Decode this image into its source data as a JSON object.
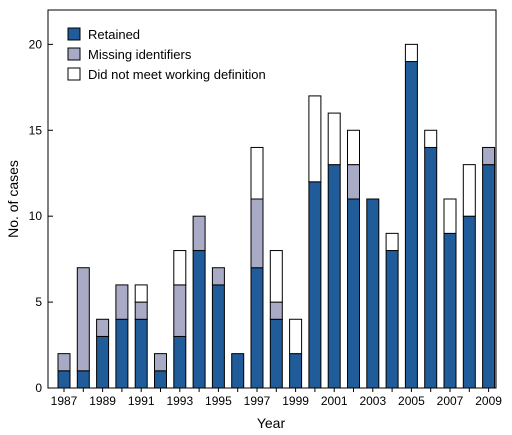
{
  "chart_data": {
    "type": "bar",
    "stacked": true,
    "xlabel": "Year",
    "ylabel": "No. of cases",
    "ylim": [
      0,
      22
    ],
    "yticks": [
      0,
      5,
      10,
      15,
      20
    ],
    "categories": [
      "1987",
      "1988",
      "1989",
      "1990",
      "1991",
      "1992",
      "1993",
      "1994",
      "1995",
      "1996",
      "1997",
      "1998",
      "1999",
      "2000",
      "2001",
      "2002",
      "2003",
      "2004",
      "2005",
      "2006",
      "2007",
      "2008",
      "2009"
    ],
    "xtick_labels": [
      "1987",
      "",
      "1989",
      "",
      "1991",
      "",
      "1993",
      "",
      "1995",
      "",
      "1997",
      "",
      "1999",
      "",
      "2001",
      "",
      "2003",
      "",
      "2005",
      "",
      "2007",
      "",
      "2009"
    ],
    "series": [
      {
        "name": "Retained",
        "color": "#1f5c99",
        "values": [
          1,
          1,
          3,
          4,
          4,
          1,
          3,
          8,
          6,
          2,
          7,
          4,
          2,
          12,
          13,
          11,
          11,
          8,
          19,
          14,
          9,
          10,
          13
        ]
      },
      {
        "name": "Missing identifiers",
        "color": "#a9abc6",
        "values": [
          1,
          6,
          1,
          2,
          1,
          1,
          3,
          2,
          1,
          0,
          4,
          1,
          0,
          0,
          0,
          2,
          0,
          0,
          0,
          0,
          0,
          0,
          1
        ]
      },
      {
        "name": "Did not meet working definition",
        "color": "#ffffff",
        "values": [
          0,
          0,
          0,
          0,
          1,
          0,
          2,
          0,
          0,
          0,
          3,
          3,
          2,
          5,
          3,
          2,
          0,
          1,
          1,
          1,
          2,
          3,
          0
        ]
      }
    ],
    "legend_position": "top-left",
    "grid": false
  }
}
